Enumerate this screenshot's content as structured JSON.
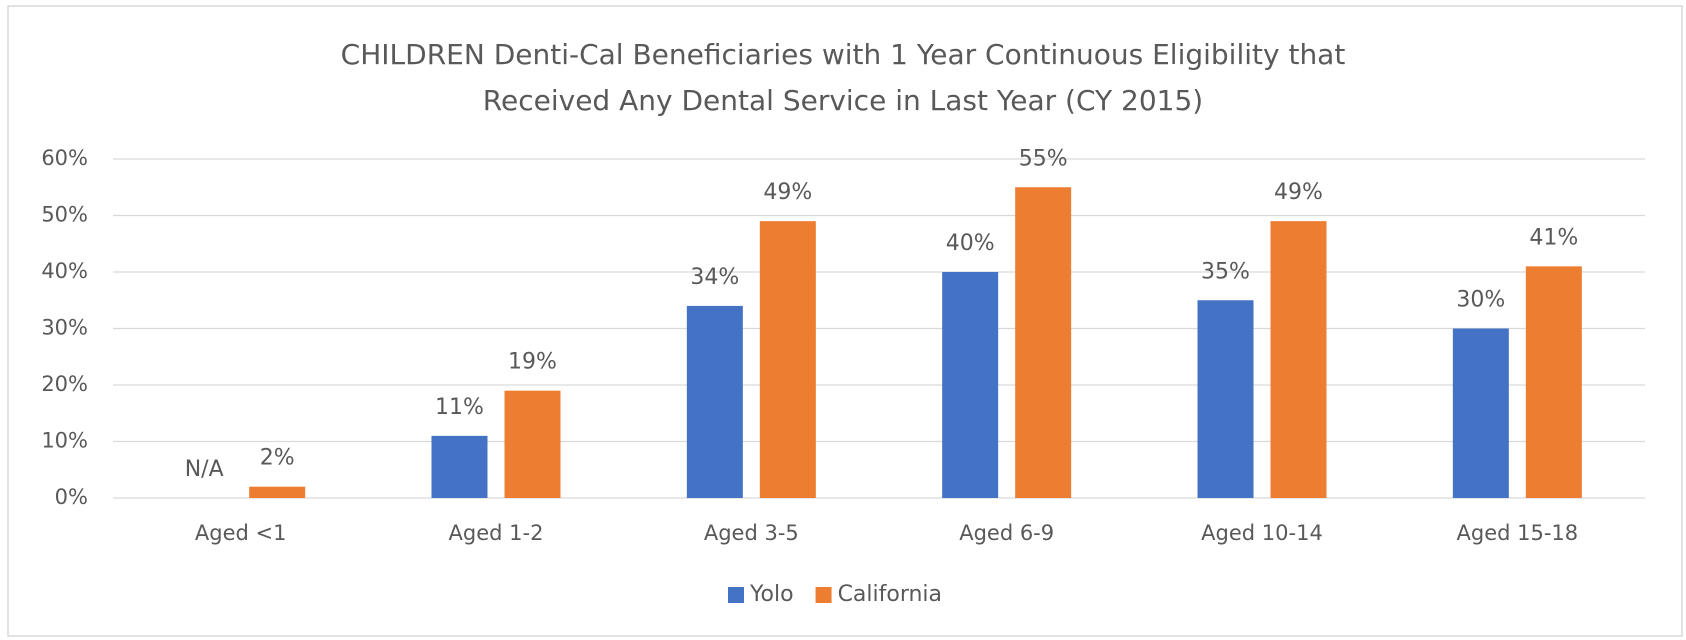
{
  "chart_data": {
    "type": "bar",
    "title": [
      "CHILDREN Denti-Cal Beneficiaries with 1 Year Continuous Eligibility that",
      "Received Any Dental Service in Last Year (CY 2015)"
    ],
    "categories": [
      "Aged <1",
      "Aged 1-2",
      "Aged 3-5",
      "Aged 6-9",
      "Aged 10-14",
      "Aged 15-18"
    ],
    "series": [
      {
        "name": "Yolo",
        "color": "#4472c4",
        "values": [
          null,
          11,
          34,
          40,
          35,
          30
        ],
        "value_labels": [
          "N/A",
          "11%",
          "34%",
          "40%",
          "35%",
          "30%"
        ]
      },
      {
        "name": "California",
        "color": "#ed7d31",
        "values": [
          2,
          19,
          49,
          55,
          49,
          41
        ],
        "value_labels": [
          "2%",
          "19%",
          "49%",
          "55%",
          "49%",
          "41%"
        ]
      }
    ],
    "ylim": [
      0,
      60
    ],
    "yticks": [
      {
        "value": 0,
        "label": "0%"
      },
      {
        "value": 10,
        "label": "10%"
      },
      {
        "value": 20,
        "label": "20%"
      },
      {
        "value": 30,
        "label": "30%"
      },
      {
        "value": 40,
        "label": "40%"
      },
      {
        "value": 50,
        "label": "50%"
      },
      {
        "value": 60,
        "label": "60%"
      }
    ],
    "grid": true,
    "legend": "bottom"
  }
}
